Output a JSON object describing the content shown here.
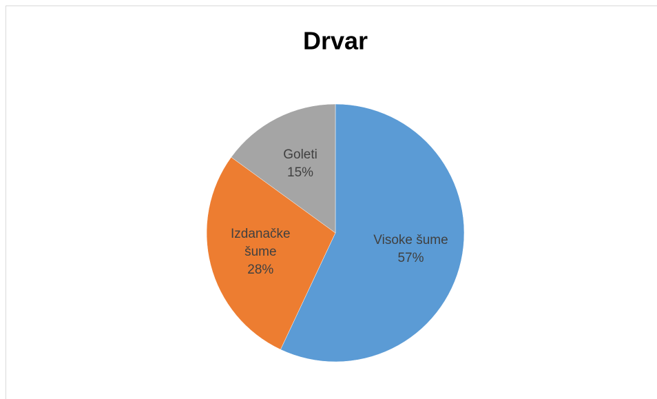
{
  "chart_data": {
    "type": "pie",
    "title": "Drvar",
    "categories": [
      "Visoke šume",
      "Izdanačke šume",
      "Goleti"
    ],
    "values": [
      57,
      28,
      15
    ],
    "value_labels": [
      "57%",
      "28%",
      "15%"
    ],
    "colors": [
      "#5b9bd5",
      "#ed7d31",
      "#a5a5a5"
    ]
  }
}
